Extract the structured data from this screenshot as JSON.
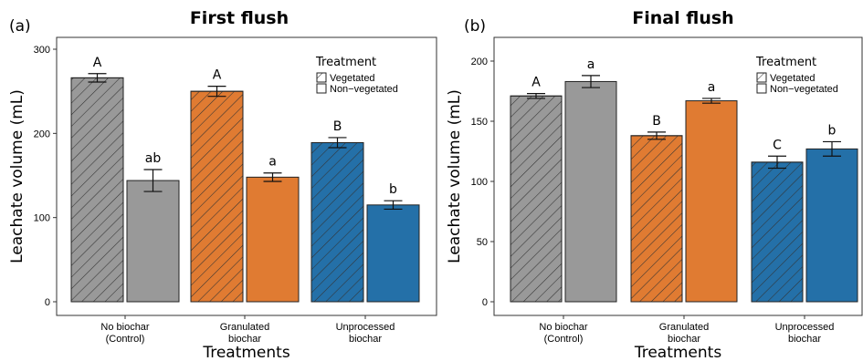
{
  "chart_data": [
    {
      "type": "bar",
      "panel_label": "(a)",
      "title": "First flush",
      "xlabel": "Treatments",
      "ylabel": "Leachate volume (mL)",
      "ylim": [
        0,
        315
      ],
      "yticks": [
        0,
        100,
        200,
        300
      ],
      "categories": [
        [
          "No biochar",
          "(Control)"
        ],
        [
          "Granulated",
          "biochar"
        ],
        [
          "Unprocessed",
          "biochar"
        ]
      ],
      "category_colors": [
        "#999999",
        "#e07b32",
        "#2470a8"
      ],
      "legend": {
        "title": "Treatment",
        "position": "top-right",
        "entries": [
          "Vegetated",
          "Non−vegetated"
        ]
      },
      "series": [
        {
          "name": "Vegetated",
          "pattern": "hatched",
          "values": [
            266,
            250,
            189
          ],
          "errors": [
            5,
            6,
            6
          ],
          "letters": [
            "A",
            "A",
            "B"
          ]
        },
        {
          "name": "Non−vegetated",
          "pattern": "solid",
          "values": [
            144,
            148,
            115
          ],
          "errors": [
            13,
            5,
            5
          ],
          "letters": [
            "ab",
            "a",
            "b"
          ]
        }
      ]
    },
    {
      "type": "bar",
      "panel_label": "(b)",
      "title": "Final flush",
      "xlabel": "Treatments",
      "ylabel": "Leachate volume (mL)",
      "ylim": [
        0,
        218
      ],
      "yticks": [
        0,
        50,
        100,
        150,
        200
      ],
      "categories": [
        [
          "No biochar",
          "(Control)"
        ],
        [
          "Granulated",
          "biochar"
        ],
        [
          "Unprocessed",
          "biochar"
        ]
      ],
      "category_colors": [
        "#999999",
        "#e07b32",
        "#2470a8"
      ],
      "legend": {
        "title": "Treatment",
        "position": "top-right",
        "entries": [
          "Vegetated",
          "Non−vegetated"
        ]
      },
      "series": [
        {
          "name": "Vegetated",
          "pattern": "hatched",
          "values": [
            171,
            138,
            116
          ],
          "errors": [
            2,
            3,
            5
          ],
          "letters": [
            "A",
            "B",
            "C"
          ]
        },
        {
          "name": "Non−vegetated",
          "pattern": "solid",
          "values": [
            183,
            167,
            127
          ],
          "errors": [
            5,
            2,
            6
          ],
          "letters": [
            "a",
            "a",
            "b"
          ]
        }
      ]
    }
  ]
}
